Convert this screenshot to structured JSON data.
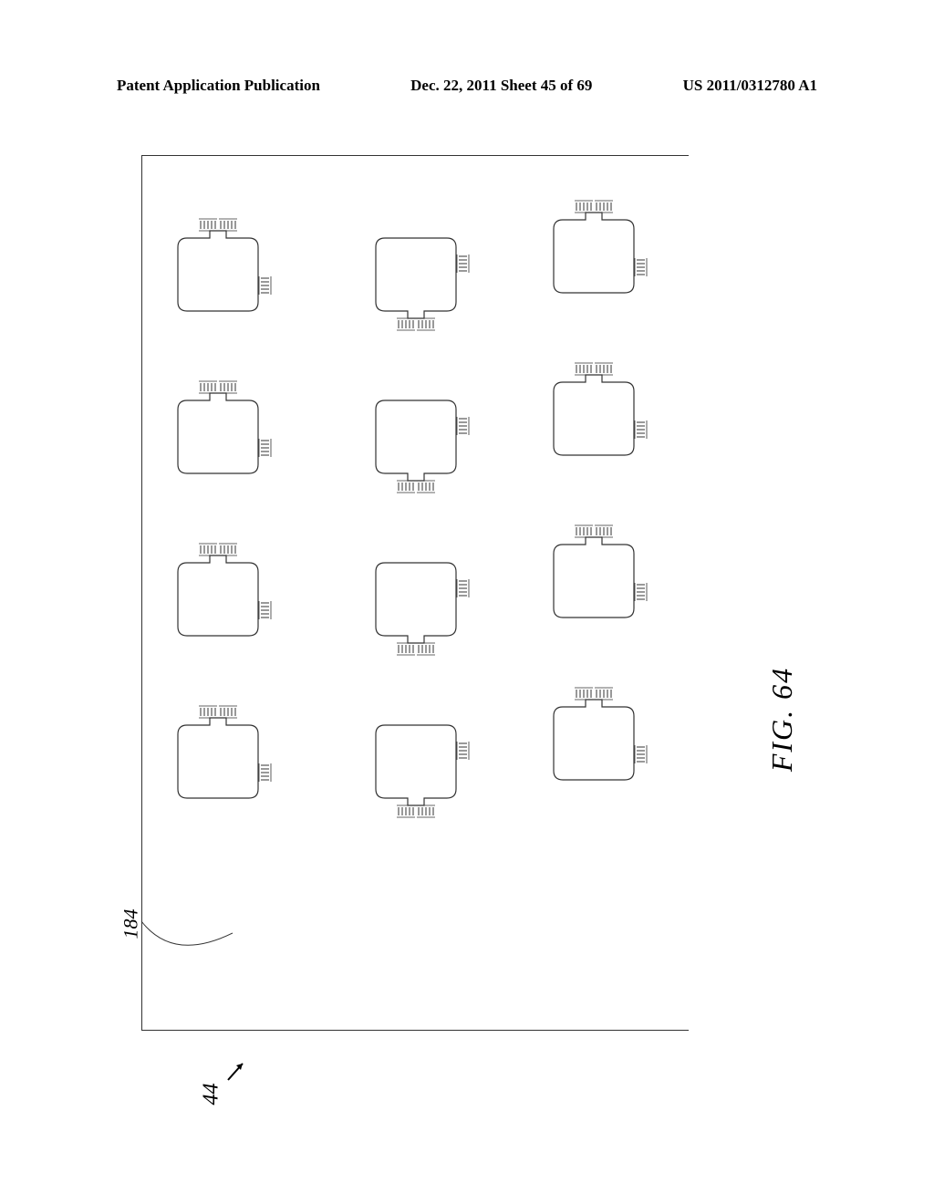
{
  "header": {
    "left": "Patent Application Publication",
    "center": "Dec. 22, 2011  Sheet 45 of 69",
    "right": "US 2011/0312780 A1"
  },
  "figure": {
    "label": "FIG. 64",
    "ref_44": "44",
    "ref_184": "184",
    "chip": {
      "body_width": 88,
      "body_height": 80,
      "body_radius": 10,
      "stroke": "#333333",
      "fill": "#ffffff",
      "stroke_width": 1.2,
      "pad_count_per_side": 5,
      "pad_len": 9,
      "pad_gap": 4
    },
    "layout": {
      "rows": 4,
      "columns": 3,
      "col1_orientation": "right-top",
      "col2_orientation": "left-bottom",
      "col3_orientation": "right-top"
    }
  }
}
